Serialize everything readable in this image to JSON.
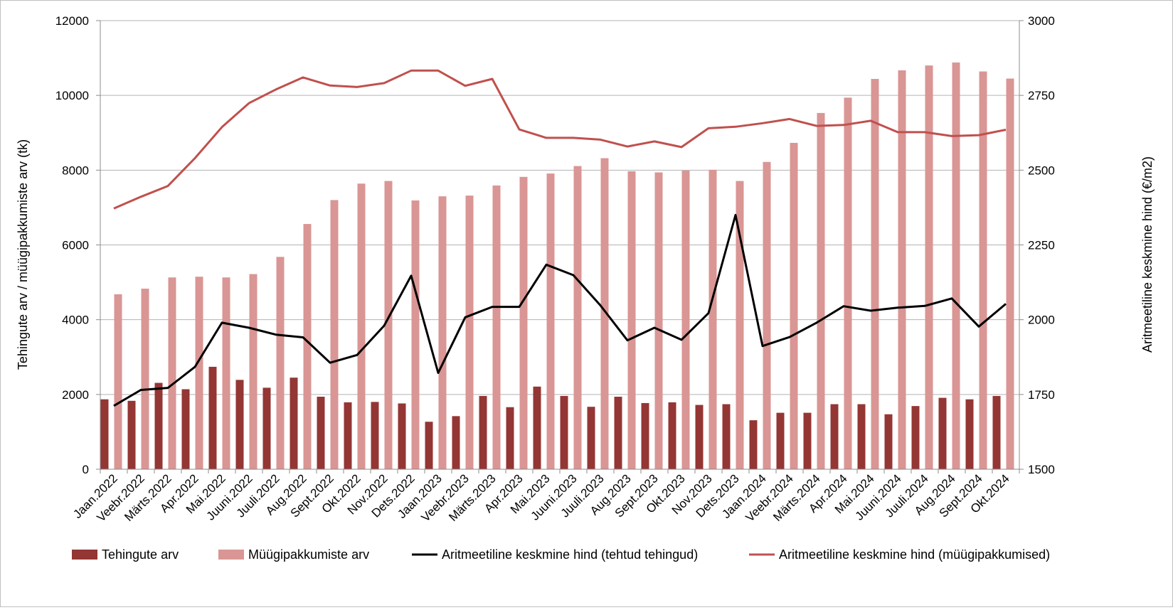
{
  "chart_data": {
    "type": "bar",
    "title": "",
    "categories": [
      "Jaan.2022",
      "Veebr.2022",
      "Märts.2022",
      "Apr.2022",
      "Mai.2022",
      "Juuni.2022",
      "Juuli.2022",
      "Aug.2022",
      "Sept.2022",
      "Okt.2022",
      "Nov.2022",
      "Dets.2022",
      "Jaan.2023",
      "Veebr.2023",
      "Märts.2023",
      "Apr.2023",
      "Mai.2023",
      "Juuni.2023",
      "Juuli.2023",
      "Aug.2023",
      "Sept.2023",
      "Okt.2023",
      "Nov.2023",
      "Dets.2023",
      "Jaan.2024",
      "Veebr.2024",
      "Märts.2024",
      "Apr.2024",
      "Mai.2024",
      "Juuni.2024",
      "Juuli.2024",
      "Aug.2024",
      "Sept.2024",
      "Okt.2024"
    ],
    "ylabel": "Tehingute arv / müügipakkumiste arv (tk)",
    "ylabel_right": "Aritmeetiline keskmine hind (€/m2)",
    "ylim": [
      0,
      12000
    ],
    "yticks": [
      "0",
      "2000",
      "4000",
      "6000",
      "8000",
      "10000",
      "12000"
    ],
    "ylim_right": [
      1500,
      3000
    ],
    "yticks_right": [
      "1500",
      "1750",
      "2000",
      "2250",
      "2500",
      "2750",
      "3000"
    ],
    "grid": true,
    "legend_position": "bottom",
    "series": [
      {
        "name": "Tehingute arv",
        "type": "bar",
        "axis": "left",
        "color": "#943634",
        "values": [
          1870,
          1830,
          2310,
          2140,
          2740,
          2390,
          2180,
          2450,
          1940,
          1790,
          1800,
          1760,
          1270,
          1420,
          1960,
          1660,
          2210,
          1960,
          1670,
          1940,
          1770,
          1790,
          1720,
          1740,
          1310,
          1510,
          1510,
          1740,
          1740,
          1470,
          1690,
          1910,
          1870,
          1960
        ]
      },
      {
        "name": "Müügipakkumiste arv",
        "type": "bar",
        "axis": "left",
        "color": "#d99694",
        "values": [
          4680,
          4830,
          5130,
          5150,
          5130,
          5220,
          5680,
          6560,
          7200,
          7640,
          7710,
          7190,
          7300,
          7320,
          7590,
          7820,
          7910,
          8110,
          8320,
          7970,
          7940,
          7990,
          8010,
          7710,
          8220,
          8730,
          9530,
          9940,
          10440,
          10670,
          10800,
          10880,
          10640,
          10450
        ]
      },
      {
        "name": "Aritmeetiline keskmine hind (tehtud tehingud)",
        "type": "line",
        "axis": "right",
        "color": "#000000",
        "values": [
          1712,
          1765,
          1772,
          1842,
          1990,
          1973,
          1950,
          1941,
          1856,
          1882,
          1980,
          2147,
          1822,
          2008,
          2043,
          2043,
          2184,
          2149,
          2048,
          1931,
          1973,
          1933,
          2022,
          2350,
          1912,
          1942,
          1990,
          2045,
          2030,
          2040,
          2046,
          2071,
          1977,
          2053
        ]
      },
      {
        "name": "Aritmeetiline keskmine hind (müügipakkumised)",
        "type": "line",
        "axis": "right",
        "color": "#c0504d",
        "values": [
          2372,
          2411,
          2447,
          2540,
          2644,
          2724,
          2770,
          2810,
          2783,
          2778,
          2791,
          2833,
          2833,
          2782,
          2805,
          2636,
          2608,
          2608,
          2602,
          2579,
          2596,
          2577,
          2640,
          2645,
          2657,
          2671,
          2648,
          2651,
          2665,
          2627,
          2627,
          2614,
          2617,
          2635
        ]
      }
    ]
  }
}
